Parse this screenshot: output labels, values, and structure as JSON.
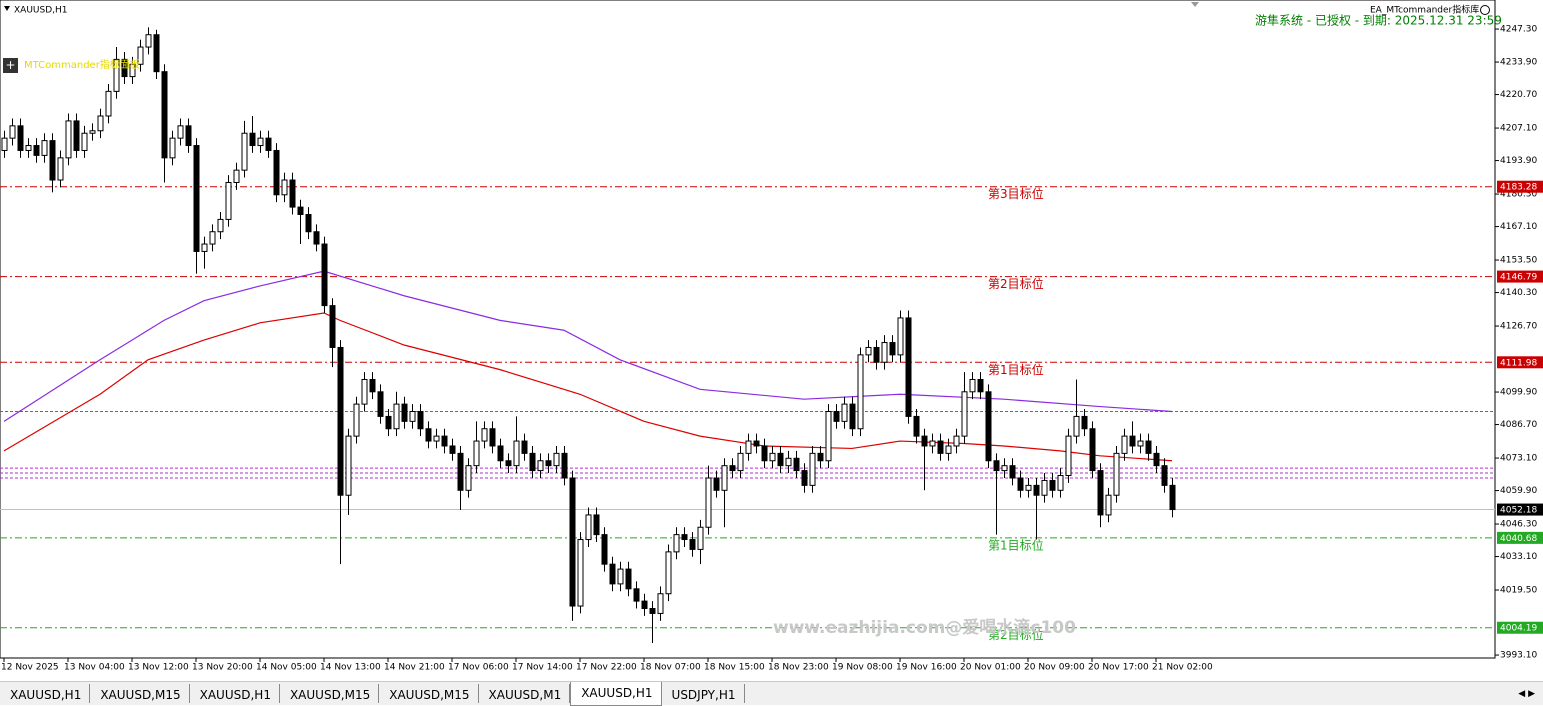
{
  "window": {
    "chart_title": "XAUUSD,H1",
    "panel_label": "MTCommander指标面板",
    "ea_label": "EA_MTcommander指标库",
    "status": "游隼系统 - 已授权 - 到期: 2025.12.31 23:59",
    "watermark": "www.eazhijia.com@爱喝水滴c100",
    "tabs": [
      "XAUUSD,H1",
      "XAUUSD,M15",
      "XAUUSD,H1",
      "XAUUSD,M15",
      "XAUUSD,M15",
      "XAUUSD,M1",
      "XAUUSD,H1",
      "USDJPY,H1"
    ],
    "active_tab": 6
  },
  "chart_data": {
    "type": "candlestick",
    "up_color": "#ffffff",
    "down_color": "#000000",
    "ylim": [
      3991.9,
      4259.1
    ],
    "yticks": [
      {
        "value": 4247.3,
        "label": "4247.30"
      },
      {
        "value": 4233.9,
        "label": "4233.90"
      },
      {
        "value": 4220.7,
        "label": "4220.70"
      },
      {
        "value": 4207.1,
        "label": "4207.10"
      },
      {
        "value": 4193.9,
        "label": "4193.90"
      },
      {
        "value": 4180.3,
        "label": "4180.30"
      },
      {
        "value": 4167.1,
        "label": "4167.10"
      },
      {
        "value": 4153.5,
        "label": "4153.50"
      },
      {
        "value": 4140.3,
        "label": "4140.30"
      },
      {
        "value": 4126.7,
        "label": "4126.70"
      },
      {
        "value": 4099.9,
        "label": "4099.90"
      },
      {
        "value": 4086.7,
        "label": "4086.70"
      },
      {
        "value": 4073.1,
        "label": "4073.10"
      },
      {
        "value": 4059.9,
        "label": "4059.90"
      },
      {
        "value": 4046.3,
        "label": "4046.30"
      },
      {
        "value": 4033.1,
        "label": "4033.10"
      },
      {
        "value": 4019.5,
        "label": "4019.50"
      },
      {
        "value": 3993.1,
        "label": "3993.10"
      }
    ],
    "xticks": [
      {
        "value": 0,
        "label": "12 Nov 2025"
      },
      {
        "value": 8,
        "label": "13 Nov 04:00"
      },
      {
        "value": 16,
        "label": "13 Nov 12:00"
      },
      {
        "value": 24,
        "label": "13 Nov 20:00"
      },
      {
        "value": 32,
        "label": "14 Nov 05:00"
      },
      {
        "value": 40,
        "label": "14 Nov 13:00"
      },
      {
        "value": 48,
        "label": "14 Nov 21:00"
      },
      {
        "value": 56,
        "label": "17 Nov 06:00"
      },
      {
        "value": 64,
        "label": "17 Nov 14:00"
      },
      {
        "value": 72,
        "label": "17 Nov 22:00"
      },
      {
        "value": 80,
        "label": "18 Nov 07:00"
      },
      {
        "value": 88,
        "label": "18 Nov 15:00"
      },
      {
        "value": 96,
        "label": "18 Nov 23:00"
      },
      {
        "value": 104,
        "label": "19 Nov 08:00"
      },
      {
        "value": 112,
        "label": "19 Nov 16:00"
      },
      {
        "value": 120,
        "label": "20 Nov 01:00"
      },
      {
        "value": 128,
        "label": "20 Nov 09:00"
      },
      {
        "value": 136,
        "label": "20 Nov 17:00"
      },
      {
        "value": 144,
        "label": "21 Nov 02:00"
      }
    ],
    "ohlc": [
      [
        4198,
        4206,
        4195,
        4203
      ],
      [
        4203,
        4211,
        4200,
        4208
      ],
      [
        4208,
        4211,
        4195,
        4198
      ],
      [
        4198,
        4203,
        4195,
        4200
      ],
      [
        4200,
        4203,
        4193,
        4196
      ],
      [
        4196,
        4205,
        4193,
        4202
      ],
      [
        4202,
        4205,
        4181,
        4186
      ],
      [
        4186,
        4198,
        4183,
        4195
      ],
      [
        4195,
        4213,
        4192,
        4210
      ],
      [
        4210,
        4213,
        4195,
        4198
      ],
      [
        4198,
        4208,
        4195,
        4205
      ],
      [
        4205,
        4209,
        4202,
        4206
      ],
      [
        4206,
        4215,
        4203,
        4212
      ],
      [
        4212,
        4225,
        4209,
        4222
      ],
      [
        4222,
        4240,
        4219,
        4235
      ],
      [
        4235,
        4238,
        4225,
        4228
      ],
      [
        4228,
        4236,
        4225,
        4233
      ],
      [
        4233,
        4243,
        4230,
        4240
      ],
      [
        4240,
        4248,
        4237,
        4245
      ],
      [
        4245,
        4247,
        4227,
        4230
      ],
      [
        4230,
        4233,
        4185,
        4195
      ],
      [
        4195,
        4206,
        4192,
        4203
      ],
      [
        4203,
        4211,
        4200,
        4208
      ],
      [
        4208,
        4211,
        4197,
        4200
      ],
      [
        4200,
        4203,
        4148,
        4157
      ],
      [
        4157,
        4163,
        4150,
        4160
      ],
      [
        4160,
        4168,
        4157,
        4165
      ],
      [
        4165,
        4173,
        4162,
        4170
      ],
      [
        4170,
        4188,
        4167,
        4185
      ],
      [
        4185,
        4193,
        4182,
        4190
      ],
      [
        4190,
        4210,
        4187,
        4205
      ],
      [
        4205,
        4212,
        4197,
        4200
      ],
      [
        4200,
        4206,
        4197,
        4203
      ],
      [
        4203,
        4206,
        4195,
        4198
      ],
      [
        4198,
        4201,
        4177,
        4180
      ],
      [
        4180,
        4189,
        4177,
        4186
      ],
      [
        4186,
        4189,
        4172,
        4175
      ],
      [
        4175,
        4178,
        4160,
        4172
      ],
      [
        4172,
        4175,
        4162,
        4165
      ],
      [
        4165,
        4168,
        4157,
        4160
      ],
      [
        4160,
        4163,
        4132,
        4135
      ],
      [
        4135,
        4138,
        4110,
        4118
      ],
      [
        4118,
        4121,
        4030,
        4058
      ],
      [
        4058,
        4085,
        4050,
        4082
      ],
      [
        4082,
        4098,
        4079,
        4095
      ],
      [
        4095,
        4108,
        4092,
        4105
      ],
      [
        4105,
        4108,
        4097,
        4100
      ],
      [
        4100,
        4103,
        4087,
        4090
      ],
      [
        4090,
        4093,
        4082,
        4085
      ],
      [
        4085,
        4100,
        4082,
        4095
      ],
      [
        4095,
        4098,
        4085,
        4088
      ],
      [
        4088,
        4095,
        4085,
        4092
      ],
      [
        4092,
        4095,
        4082,
        4085
      ],
      [
        4085,
        4088,
        4077,
        4080
      ],
      [
        4080,
        4085,
        4077,
        4082
      ],
      [
        4082,
        4085,
        4075,
        4078
      ],
      [
        4078,
        4081,
        4072,
        4075
      ],
      [
        4075,
        4078,
        4052,
        4060
      ],
      [
        4060,
        4073,
        4057,
        4070
      ],
      [
        4070,
        4088,
        4067,
        4080
      ],
      [
        4080,
        4088,
        4077,
        4085
      ],
      [
        4085,
        4088,
        4075,
        4078
      ],
      [
        4078,
        4081,
        4069,
        4072
      ],
      [
        4072,
        4075,
        4067,
        4070
      ],
      [
        4070,
        4090,
        4067,
        4080
      ],
      [
        4080,
        4083,
        4072,
        4075
      ],
      [
        4075,
        4078,
        4065,
        4068
      ],
      [
        4068,
        4075,
        4065,
        4072
      ],
      [
        4072,
        4075,
        4067,
        4070
      ],
      [
        4070,
        4078,
        4067,
        4075
      ],
      [
        4075,
        4078,
        4062,
        4065
      ],
      [
        4065,
        4068,
        4007,
        4013
      ],
      [
        4013,
        4043,
        4010,
        4040
      ],
      [
        4040,
        4053,
        4037,
        4050
      ],
      [
        4050,
        4053,
        4039,
        4042
      ],
      [
        4042,
        4045,
        4027,
        4030
      ],
      [
        4030,
        4033,
        4019,
        4022
      ],
      [
        4022,
        4031,
        4019,
        4028
      ],
      [
        4028,
        4031,
        4017,
        4020
      ],
      [
        4020,
        4023,
        4012,
        4015
      ],
      [
        4015,
        4018,
        4009,
        4012
      ],
      [
        4012,
        4015,
        3998,
        4010
      ],
      [
        4010,
        4021,
        4007,
        4018
      ],
      [
        4018,
        4038,
        4015,
        4035
      ],
      [
        4035,
        4045,
        4032,
        4042
      ],
      [
        4042,
        4045,
        4037,
        4040
      ],
      [
        4040,
        4043,
        4033,
        4036
      ],
      [
        4036,
        4048,
        4030,
        4045
      ],
      [
        4045,
        4070,
        4042,
        4065
      ],
      [
        4065,
        4068,
        4057,
        4060
      ],
      [
        4060,
        4073,
        4045,
        4070
      ],
      [
        4070,
        4073,
        4065,
        4068
      ],
      [
        4068,
        4078,
        4065,
        4075
      ],
      [
        4075,
        4083,
        4072,
        4080
      ],
      [
        4080,
        4083,
        4075,
        4078
      ],
      [
        4078,
        4081,
        4069,
        4072
      ],
      [
        4072,
        4078,
        4069,
        4075
      ],
      [
        4075,
        4078,
        4067,
        4070
      ],
      [
        4070,
        4076,
        4067,
        4073
      ],
      [
        4073,
        4076,
        4065,
        4068
      ],
      [
        4068,
        4071,
        4059,
        4062
      ],
      [
        4062,
        4078,
        4059,
        4075
      ],
      [
        4075,
        4078,
        4069,
        4072
      ],
      [
        4072,
        4095,
        4069,
        4092
      ],
      [
        4092,
        4095,
        4085,
        4088
      ],
      [
        4088,
        4098,
        4085,
        4095
      ],
      [
        4095,
        4098,
        4082,
        4085
      ],
      [
        4085,
        4118,
        4082,
        4115
      ],
      [
        4115,
        4121,
        4112,
        4118
      ],
      [
        4118,
        4121,
        4109,
        4112
      ],
      [
        4112,
        4123,
        4109,
        4120
      ],
      [
        4120,
        4123,
        4112,
        4115
      ],
      [
        4115,
        4133,
        4112,
        4130
      ],
      [
        4130,
        4133,
        4087,
        4090
      ],
      [
        4090,
        4093,
        4079,
        4082
      ],
      [
        4082,
        4085,
        4060,
        4078
      ],
      [
        4078,
        4083,
        4075,
        4080
      ],
      [
        4080,
        4083,
        4072,
        4075
      ],
      [
        4075,
        4081,
        4072,
        4078
      ],
      [
        4078,
        4085,
        4075,
        4082
      ],
      [
        4082,
        4108,
        4079,
        4100
      ],
      [
        4100,
        4108,
        4097,
        4105
      ],
      [
        4105,
        4108,
        4097,
        4100
      ],
      [
        4100,
        4103,
        4069,
        4072
      ],
      [
        4072,
        4075,
        4042,
        4068
      ],
      [
        4068,
        4073,
        4065,
        4070
      ],
      [
        4070,
        4073,
        4062,
        4065
      ],
      [
        4065,
        4068,
        4057,
        4060
      ],
      [
        4060,
        4065,
        4057,
        4062
      ],
      [
        4062,
        4065,
        4040,
        4058
      ],
      [
        4058,
        4067,
        4055,
        4064
      ],
      [
        4064,
        4067,
        4057,
        4060
      ],
      [
        4060,
        4069,
        4057,
        4066
      ],
      [
        4066,
        4085,
        4063,
        4082
      ],
      [
        4082,
        4105,
        4079,
        4090
      ],
      [
        4090,
        4093,
        4082,
        4085
      ],
      [
        4085,
        4088,
        4065,
        4068
      ],
      [
        4068,
        4071,
        4045,
        4050
      ],
      [
        4050,
        4061,
        4047,
        4058
      ],
      [
        4058,
        4078,
        4055,
        4075
      ],
      [
        4075,
        4085,
        4072,
        4082
      ],
      [
        4082,
        4088,
        4075,
        4078
      ],
      [
        4078,
        4083,
        4075,
        4080
      ],
      [
        4080,
        4083,
        4072,
        4075
      ],
      [
        4075,
        4078,
        4067,
        4070
      ],
      [
        4070,
        4073,
        4059,
        4062
      ],
      [
        4062,
        4065,
        4049,
        4052.18
      ]
    ],
    "moving_averages": [
      {
        "color": "#8a2be2",
        "index": [
          0,
          12,
          20,
          25,
          32,
          40,
          50,
          62,
          70,
          77,
          87,
          100,
          112,
          125,
          137,
          146
        ],
        "values": [
          4088,
          4113,
          4129,
          4137,
          4143,
          4149,
          4139,
          4129,
          4125,
          4113,
          4101,
          4097,
          4099,
          4097,
          4094,
          4092
        ]
      },
      {
        "color": "#dd0000",
        "index": [
          0,
          12,
          18,
          25,
          32,
          40,
          42,
          50,
          62,
          72,
          80,
          87,
          95,
          106,
          112,
          120,
          125,
          132,
          137,
          146
        ],
        "values": [
          4076,
          4099,
          4113,
          4121,
          4128,
          4132,
          4129,
          4119,
          4109,
          4099,
          4088,
          4082,
          4078,
          4077,
          4080,
          4079,
          4078,
          4076,
          4074,
          4072
        ]
      }
    ],
    "levels": [
      {
        "value": 4183.28,
        "label": "第3目标位",
        "color": "#cc0000",
        "style": "dashdot",
        "tag": true
      },
      {
        "value": 4146.79,
        "label": "第2目标位",
        "color": "#cc0000",
        "style": "dashdot",
        "tag": true
      },
      {
        "value": 4111.98,
        "label": "第1目标位",
        "color": "#cc0000",
        "style": "dashdot",
        "tag": true
      },
      {
        "value": 4040.68,
        "label": "第1目标位",
        "color": "#22aa22",
        "style": "dashdot",
        "tag": true
      },
      {
        "value": 4004.19,
        "label": "第2目标位",
        "color": "#22aa22",
        "style": "dashdot",
        "tag": true
      },
      {
        "value": 4092,
        "color": "#b030d0",
        "style": "dash",
        "tag": false
      },
      {
        "value": 4069,
        "color": "#b030d0",
        "style": "dash",
        "tag": false
      },
      {
        "value": 4067,
        "color": "#b030d0",
        "style": "dash",
        "tag": false
      },
      {
        "value": 4065,
        "color": "#b030d0",
        "style": "dash",
        "tag": false
      },
      {
        "value": 4052.18,
        "color": "#c0c0c0",
        "style": "solid",
        "tag": true,
        "tag_color": "#000000"
      }
    ]
  }
}
